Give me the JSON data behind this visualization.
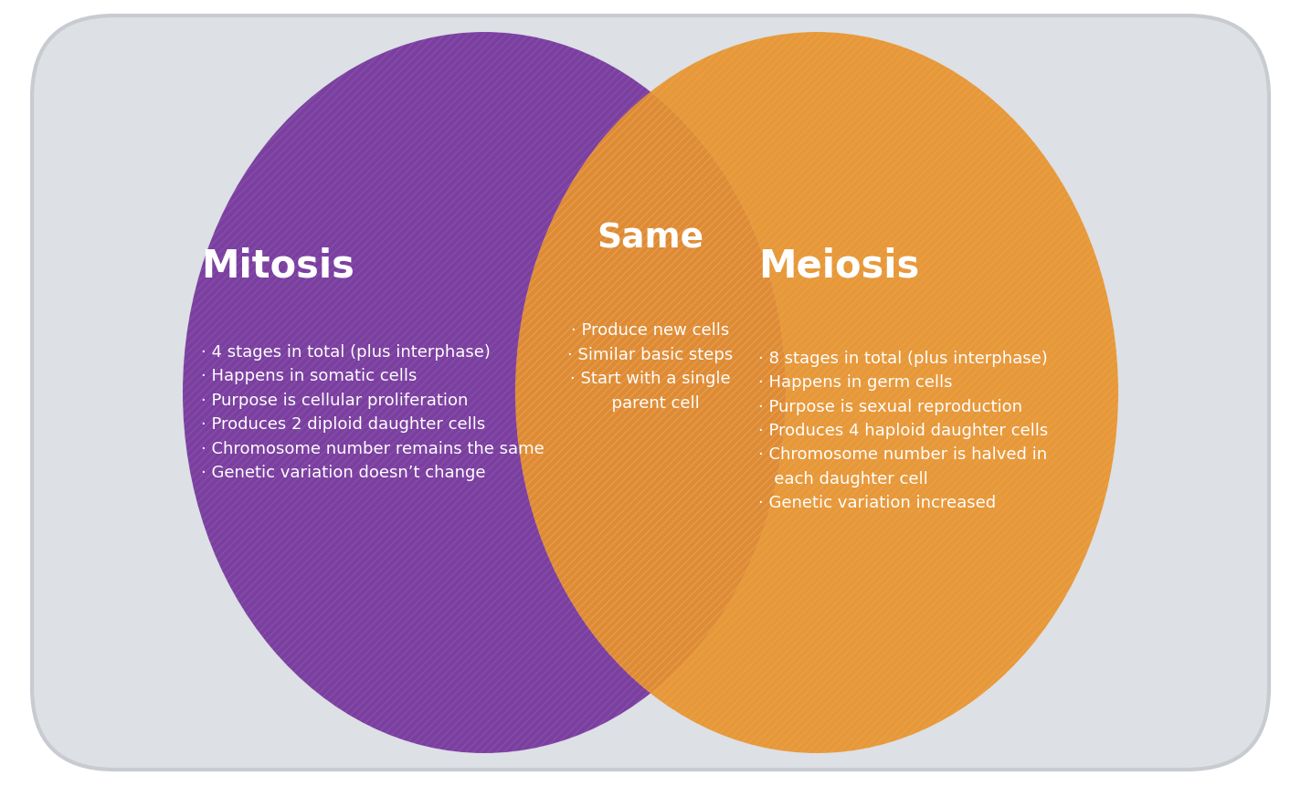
{
  "background_color": "#ffffff",
  "outer_bg_color": "#dde0e5",
  "mitosis_color": "#7b3fa0",
  "meiosis_color": "#e8922a",
  "overlap_color": "#c47820",
  "text_color": "#ffffff",
  "mitosis_title": "Mitosis",
  "meiosis_title": "Meiosis",
  "same_title": "Same",
  "mitosis_points": "· 4 stages in total (plus interphase)\n· Happens in somatic cells\n· Purpose is cellular proliferation\n· Produces 2 diploid daughter cells\n· Chromosome number remains the same\n· Genetic variation doesn’t change",
  "meiosis_points": "· 8 stages in total (plus interphase)\n· Happens in germ cells\n· Purpose is sexual reproduction\n· Produces 4 haploid daughter cells\n· Chromosome number is halved in\n   each daughter cell\n· Genetic variation increased",
  "same_points": "· Produce new cells\n· Similar basic steps\n· Start with a single\n  parent cell",
  "fig_width": 14.24,
  "fig_height": 8.62,
  "dpi": 100
}
